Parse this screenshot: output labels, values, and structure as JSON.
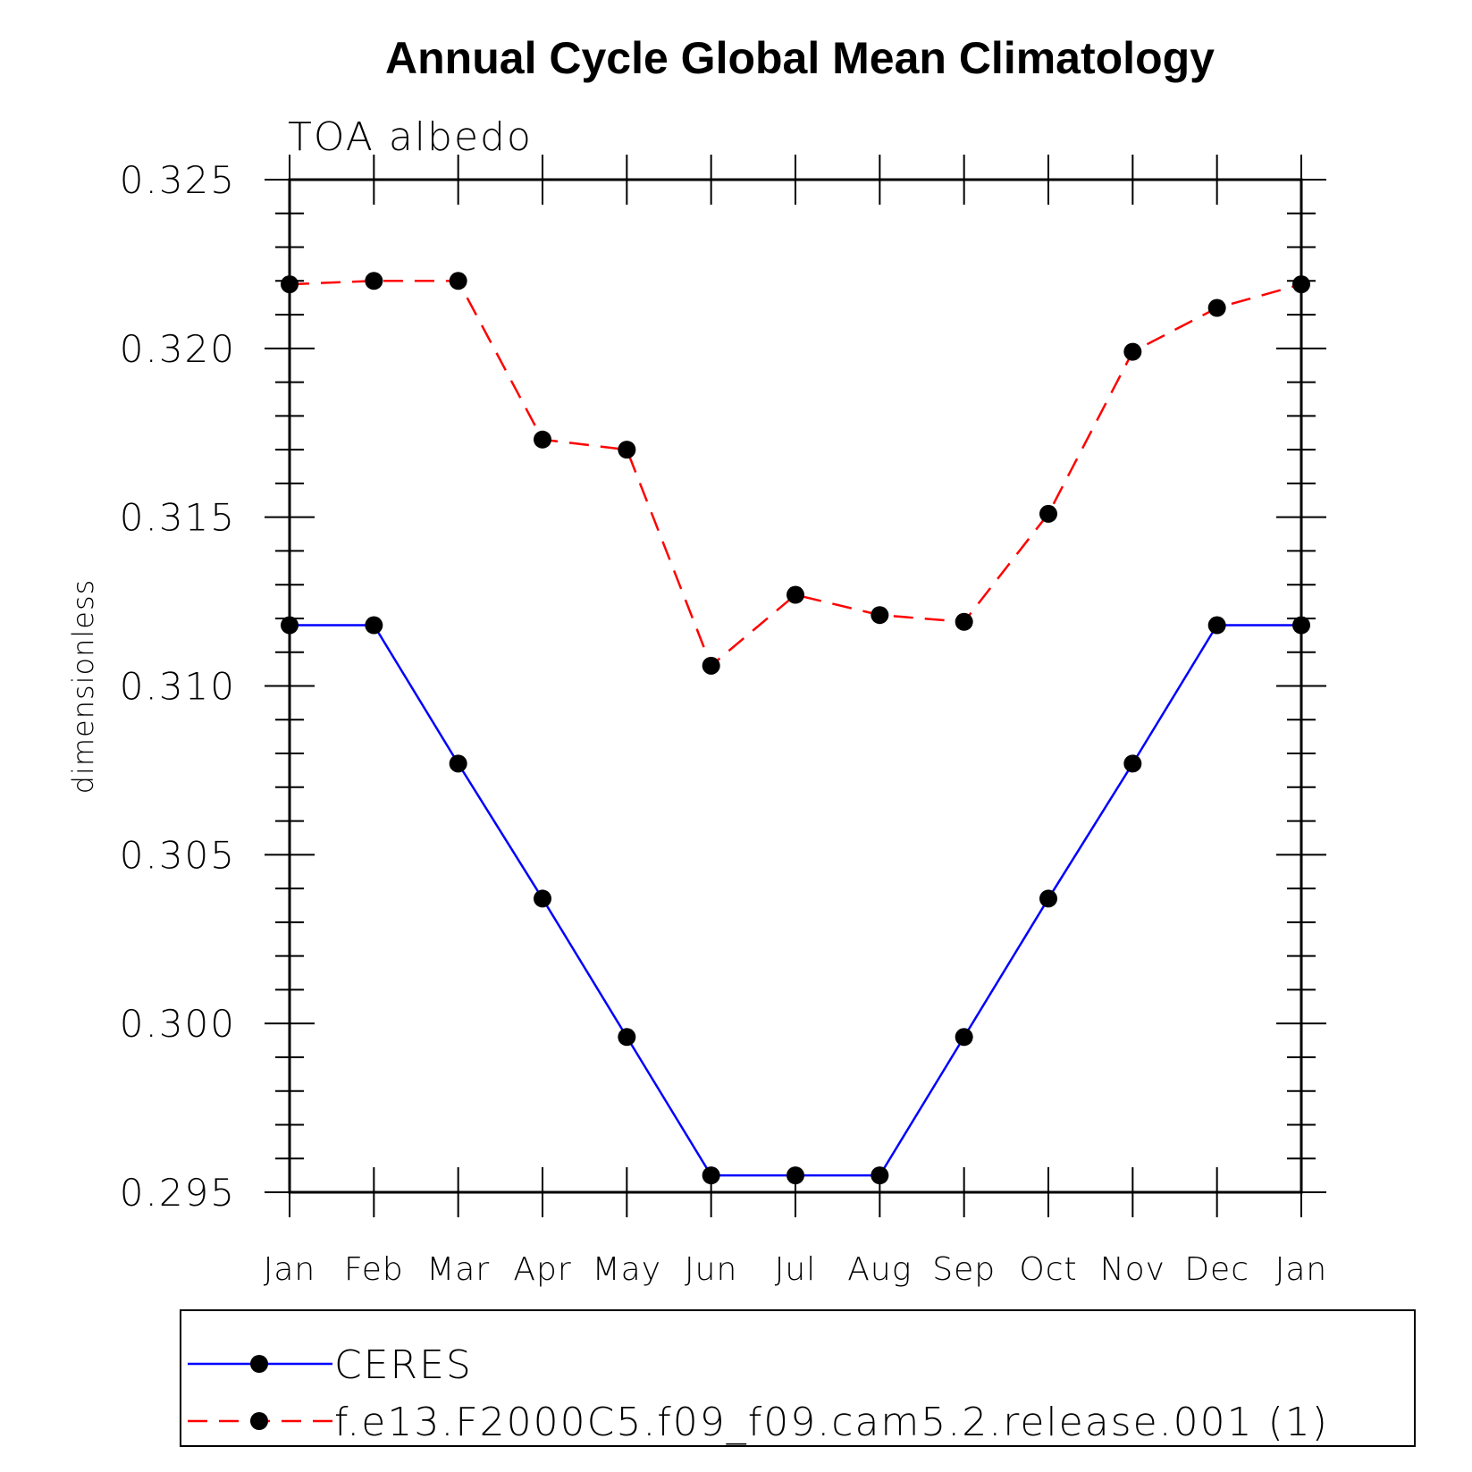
{
  "chart_data": {
    "type": "line",
    "title": "Annual Cycle Global Mean Climatology",
    "subtitle": "TOA albedo",
    "xlabel": "",
    "ylabel": "dimensionless",
    "categories": [
      "Jan",
      "Feb",
      "Mar",
      "Apr",
      "May",
      "Jun",
      "Jul",
      "Aug",
      "Sep",
      "Oct",
      "Nov",
      "Dec",
      "Jan"
    ],
    "ylim": [
      0.295,
      0.325
    ],
    "yticks": [
      "0.295",
      "0.300",
      "0.305",
      "0.310",
      "0.315",
      "0.320",
      "0.325"
    ],
    "grid": false,
    "legend_position": "bottom",
    "series": [
      {
        "name": "CERES",
        "color": "#0000ff",
        "line_style": "solid",
        "marker": "filled-circle",
        "values": [
          0.3118,
          0.3118,
          0.3077,
          0.3037,
          0.2996,
          0.2955,
          0.2955,
          0.2955,
          0.2996,
          0.3037,
          0.3077,
          0.3118,
          0.3118
        ]
      },
      {
        "name": "f.e13.F2000C5.f09_f09.cam5.2.release.001 (1)",
        "color": "#ff0000",
        "line_style": "dashed",
        "marker": "filled-circle",
        "values": [
          0.3219,
          0.322,
          0.322,
          0.3173,
          0.317,
          0.3106,
          0.3127,
          0.3121,
          0.3119,
          0.3151,
          0.3199,
          0.3212,
          0.3219
        ]
      }
    ]
  }
}
